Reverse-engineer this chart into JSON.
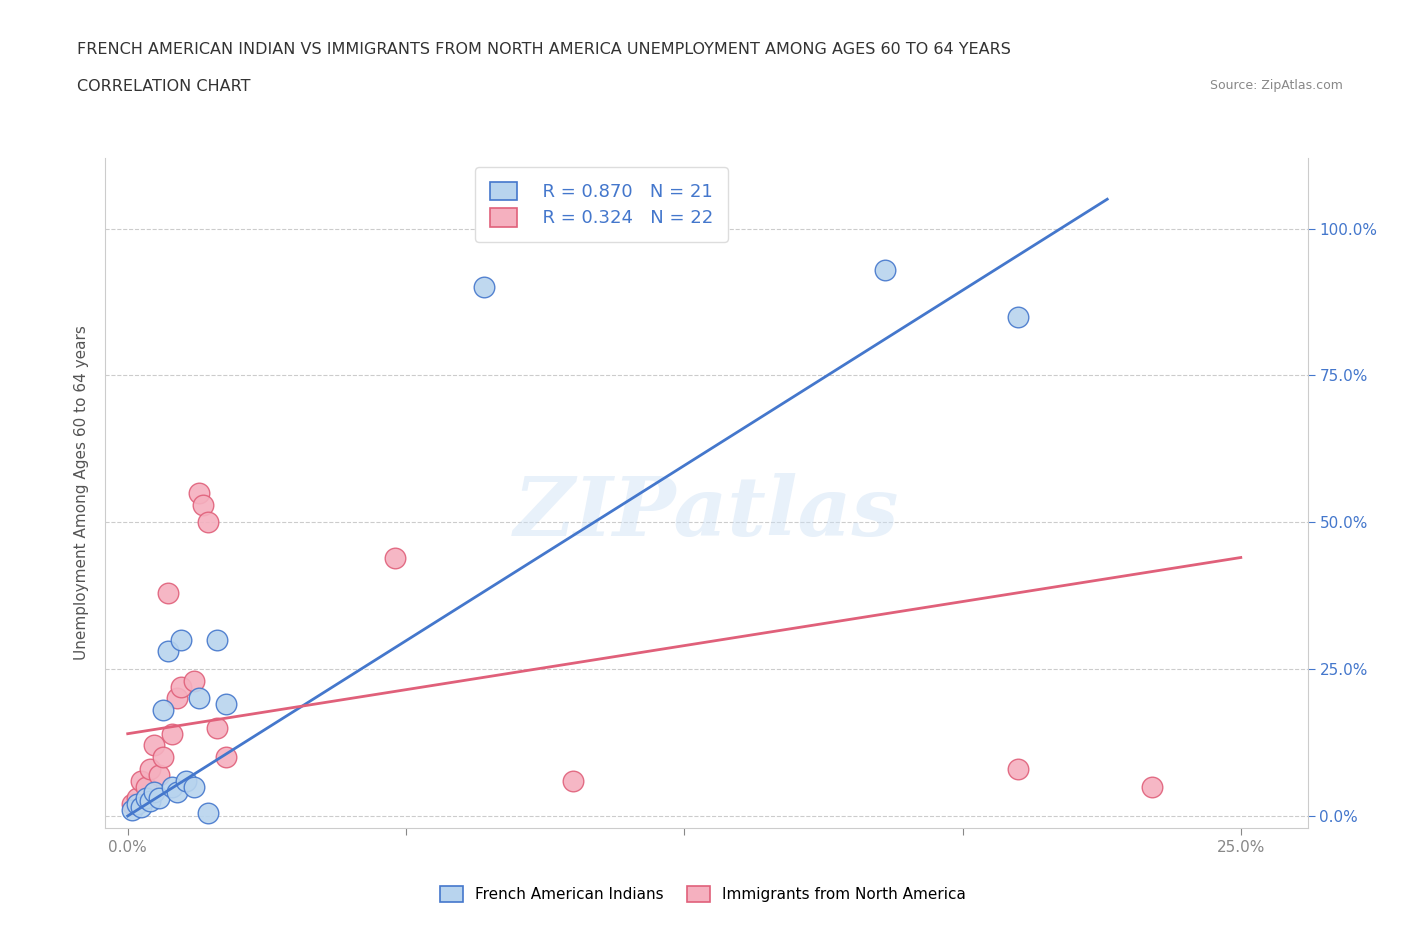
{
  "title_line1": "FRENCH AMERICAN INDIAN VS IMMIGRANTS FROM NORTH AMERICA UNEMPLOYMENT AMONG AGES 60 TO 64 YEARS",
  "title_line2": "CORRELATION CHART",
  "source": "Source: ZipAtlas.com",
  "ylabel": "Unemployment Among Ages 60 to 64 years",
  "watermark": "ZIPatlas",
  "blue_R": "R = 0.870",
  "blue_N": "N = 21",
  "pink_R": "R = 0.324",
  "pink_N": "N = 22",
  "legend_label_blue": "French American Indians",
  "legend_label_pink": "Immigrants from North America",
  "blue_scatter_x": [
    0.1,
    0.2,
    0.3,
    0.4,
    0.5,
    0.6,
    0.7,
    0.8,
    0.9,
    1.0,
    1.1,
    1.2,
    1.3,
    1.5,
    1.6,
    1.8,
    2.0,
    2.2,
    8.0,
    17.0,
    20.0
  ],
  "blue_scatter_y": [
    1.0,
    2.0,
    1.5,
    3.0,
    2.5,
    4.0,
    3.0,
    18.0,
    28.0,
    5.0,
    4.0,
    30.0,
    6.0,
    5.0,
    20.0,
    0.5,
    30.0,
    19.0,
    90.0,
    93.0,
    85.0
  ],
  "pink_scatter_x": [
    0.1,
    0.2,
    0.3,
    0.4,
    0.5,
    0.6,
    0.7,
    0.8,
    0.9,
    1.0,
    1.1,
    1.2,
    1.5,
    1.6,
    1.7,
    1.8,
    2.0,
    2.2,
    6.0,
    10.0,
    20.0,
    23.0
  ],
  "pink_scatter_y": [
    2.0,
    3.0,
    6.0,
    5.0,
    8.0,
    12.0,
    7.0,
    10.0,
    38.0,
    14.0,
    20.0,
    22.0,
    23.0,
    55.0,
    53.0,
    50.0,
    15.0,
    10.0,
    44.0,
    6.0,
    8.0,
    5.0
  ],
  "blue_line_x": [
    0.0,
    22.0
  ],
  "blue_line_y": [
    0.0,
    105.0
  ],
  "pink_line_x": [
    0.0,
    25.0
  ],
  "pink_line_y": [
    14.0,
    44.0
  ],
  "blue_color": "#b8d4ee",
  "pink_color": "#f5b0bf",
  "blue_line_color": "#4477cc",
  "pink_line_color": "#e0607a",
  "ytick_labels": [
    "0.0%",
    "25.0%",
    "50.0%",
    "75.0%",
    "100.0%"
  ],
  "ytick_values": [
    0.0,
    25.0,
    50.0,
    75.0,
    100.0
  ],
  "xtick_values": [
    0.0,
    6.25,
    12.5,
    18.75,
    25.0
  ],
  "xtick_labels": [
    "0.0%",
    "",
    "",
    "",
    "25.0%"
  ],
  "xlim": [
    -0.5,
    26.5
  ],
  "ylim": [
    -2.0,
    112.0
  ],
  "title_color": "#333333",
  "source_color": "#888888",
  "ylabel_color": "#555555",
  "right_tick_color": "#4477cc",
  "grid_color": "#cccccc",
  "spine_color": "#cccccc"
}
